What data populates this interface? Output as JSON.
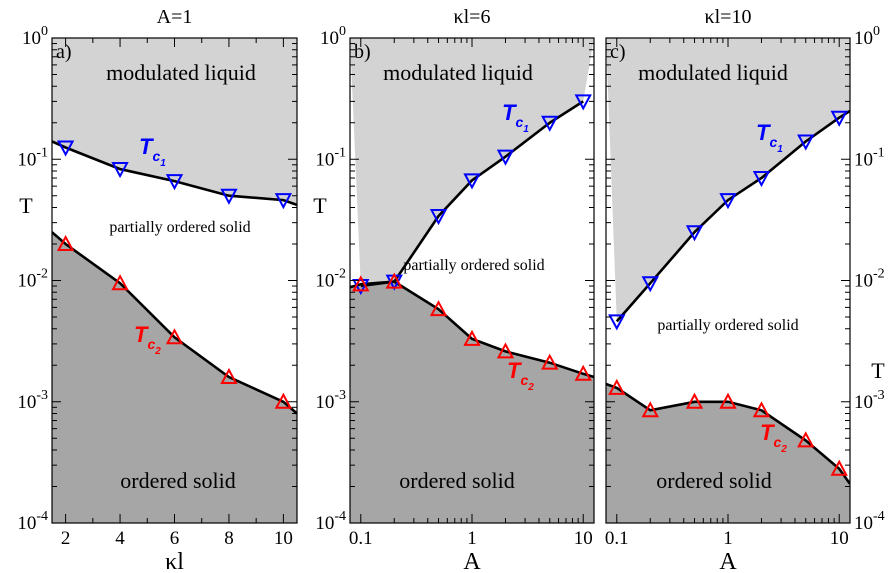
{
  "chart_data": [
    {
      "type": "line",
      "panel_label": "a)",
      "title": "A=1",
      "xlabel": "κl",
      "ylabel": "T",
      "xscale": "linear",
      "yscale": "log",
      "xlim": [
        1.5,
        10.5
      ],
      "ylim": [
        0.0001,
        1
      ],
      "xticks": [
        2,
        4,
        6,
        8,
        10
      ],
      "xtick_labels": [
        "2",
        "4",
        "6",
        "8",
        "10"
      ],
      "ytick_labels": [
        [
          "10",
          "0"
        ],
        [
          "10",
          "-1"
        ],
        [
          "10",
          "-2"
        ],
        [
          "10",
          "-3"
        ],
        [
          "10",
          "-4"
        ]
      ],
      "region_labels": [
        "modulated liquid",
        "partially ordered solid",
        "ordered solid"
      ],
      "series": [
        {
          "label": "c1",
          "color": "#0000ff",
          "marker": "triangle-down",
          "x": [
            2,
            4,
            6,
            8,
            10
          ],
          "y": [
            0.125,
            0.083,
            0.066,
            0.05,
            0.046
          ],
          "line_x": [
            1.5,
            2,
            4,
            6,
            8,
            10,
            10.5
          ],
          "line_y": [
            0.14,
            0.125,
            0.083,
            0.066,
            0.05,
            0.046,
            0.042
          ]
        },
        {
          "label": "c2",
          "color": "#ff0000",
          "marker": "triangle-up",
          "x": [
            2,
            4,
            6,
            8,
            10
          ],
          "y": [
            0.02,
            0.0095,
            0.0034,
            0.0016,
            0.001
          ],
          "line_x": [
            1.5,
            2,
            4,
            6,
            8,
            10,
            10.5
          ],
          "line_y": [
            0.025,
            0.02,
            0.0095,
            0.0034,
            0.0016,
            0.001,
            0.0008
          ]
        }
      ]
    },
    {
      "type": "line",
      "panel_label": "b)",
      "title": "κl=6",
      "xlabel": "A",
      "ylabel": "T",
      "xscale": "log",
      "yscale": "log",
      "xlim": [
        0.08,
        12.5
      ],
      "ylim": [
        0.0001,
        1
      ],
      "xticks": [
        0.1,
        1,
        10
      ],
      "xtick_labels": [
        "0.1",
        "1",
        "10"
      ],
      "ytick_labels": [
        [
          "10",
          "0"
        ],
        [
          "10",
          "-1"
        ],
        [
          "10",
          "-2"
        ],
        [
          "10",
          "-3"
        ],
        [
          "10",
          "-4"
        ]
      ],
      "region_labels": [
        "modulated liquid",
        "partially ordered solid",
        "ordered solid"
      ],
      "series": [
        {
          "label": "c1",
          "color": "#0000ff",
          "marker": "triangle-down",
          "x": [
            0.1,
            0.2,
            0.5,
            1,
            2,
            5,
            10
          ],
          "y": [
            0.009,
            0.0098,
            0.034,
            0.067,
            0.105,
            0.2,
            0.3
          ],
          "line_x": [
            0.1,
            0.2,
            0.5,
            1,
            2,
            5,
            10
          ],
          "line_y": [
            0.009,
            0.0098,
            0.034,
            0.067,
            0.105,
            0.2,
            0.3
          ]
        },
        {
          "label": "c2",
          "color": "#ff0000",
          "marker": "triangle-up",
          "x": [
            0.1,
            0.2,
            0.5,
            1,
            2,
            5,
            10
          ],
          "y": [
            0.0093,
            0.0098,
            0.0058,
            0.0033,
            0.0026,
            0.0021,
            0.0017
          ],
          "line_x": [
            0.08,
            0.1,
            0.2,
            0.5,
            1,
            2,
            5,
            10,
            12.5
          ],
          "line_y": [
            0.0088,
            0.0093,
            0.0098,
            0.0058,
            0.0033,
            0.0026,
            0.0021,
            0.0017,
            0.0016
          ]
        }
      ]
    },
    {
      "type": "line",
      "panel_label": "c)",
      "title": "κl=10",
      "xlabel": "A",
      "ylabel": "T",
      "xscale": "log",
      "yscale": "log",
      "xlim": [
        0.08,
        12.5
      ],
      "ylim": [
        0.0001,
        1
      ],
      "xticks": [
        0.1,
        1,
        10
      ],
      "xtick_labels": [
        "0.1",
        "1",
        "10"
      ],
      "ytick_labels": [
        [
          "10",
          "0"
        ],
        [
          "10",
          "-1"
        ],
        [
          "10",
          "-2"
        ],
        [
          "10",
          "-3"
        ],
        [
          "10",
          "-4"
        ]
      ],
      "region_labels": [
        "modulated liquid",
        "partially ordered solid",
        "ordered solid"
      ],
      "series": [
        {
          "label": "c1",
          "color": "#0000ff",
          "marker": "triangle-down",
          "x": [
            0.1,
            0.2,
            0.5,
            1,
            2,
            5,
            10
          ],
          "y": [
            0.0046,
            0.0095,
            0.025,
            0.046,
            0.07,
            0.14,
            0.22
          ],
          "line_x": [
            0.1,
            0.2,
            0.5,
            1,
            2,
            5,
            10,
            12.5
          ],
          "line_y": [
            0.0046,
            0.0095,
            0.025,
            0.046,
            0.07,
            0.14,
            0.22,
            0.25
          ]
        },
        {
          "label": "c2",
          "color": "#ff0000",
          "marker": "triangle-up",
          "x": [
            0.1,
            0.2,
            0.5,
            1,
            2,
            5,
            10
          ],
          "y": [
            0.0013,
            0.00085,
            0.001,
            0.001,
            0.00085,
            0.00048,
            0.00028
          ],
          "line_x": [
            0.08,
            0.1,
            0.2,
            0.5,
            1,
            2,
            5,
            10,
            12.5
          ],
          "line_y": [
            0.0014,
            0.0013,
            0.00085,
            0.001,
            0.001,
            0.00085,
            0.00048,
            0.00028,
            0.00021
          ]
        }
      ]
    }
  ],
  "colors": {
    "upper_region": "#d3d3d3",
    "lower_region": "#a6a6a6",
    "middle_region": "#ffffff",
    "tc1_color": "#0000ff",
    "tc2_color": "#ff0000"
  }
}
